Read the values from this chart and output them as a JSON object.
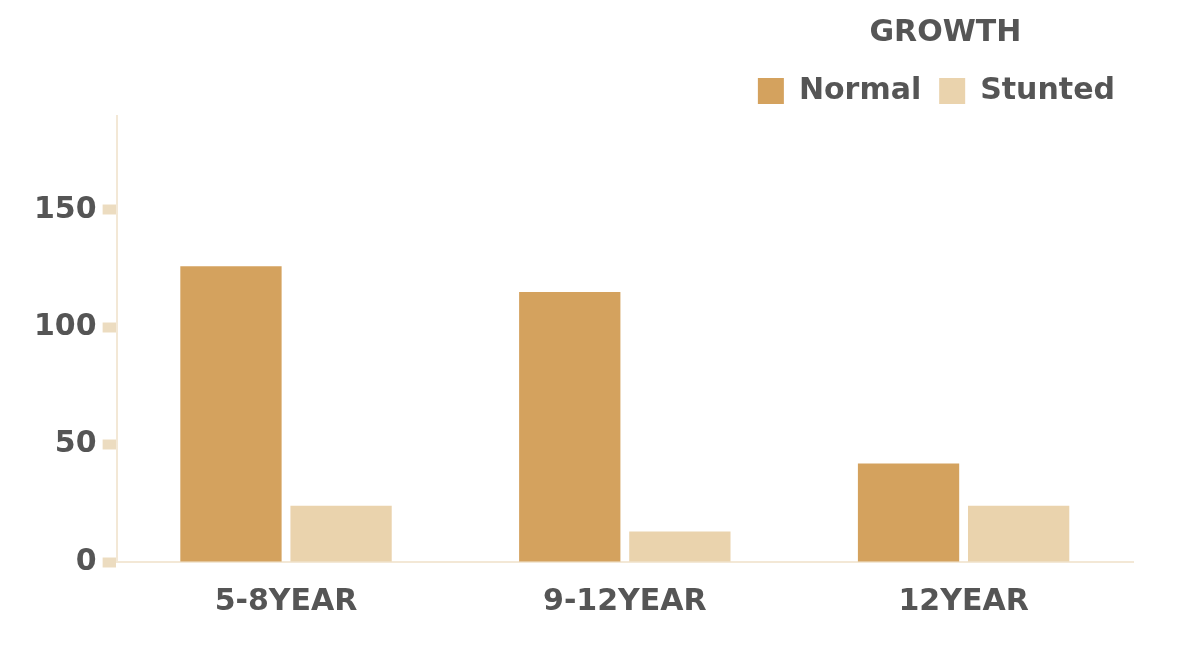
{
  "chart_data": {
    "type": "bar",
    "legend_title": "GROWTH",
    "legend": "top right",
    "categories": [
      "5-8YEAR",
      "9-12YEAR",
      "12YEAR"
    ],
    "series": [
      {
        "name": "Normal",
        "color": "#d4a25e",
        "values": [
          126,
          115,
          42
        ]
      },
      {
        "name": "Stunted",
        "color": "#ead3ad",
        "values": [
          24,
          13,
          24
        ]
      }
    ],
    "ylim": [
      0,
      190
    ],
    "yticks": [
      0,
      50,
      100,
      150
    ]
  }
}
